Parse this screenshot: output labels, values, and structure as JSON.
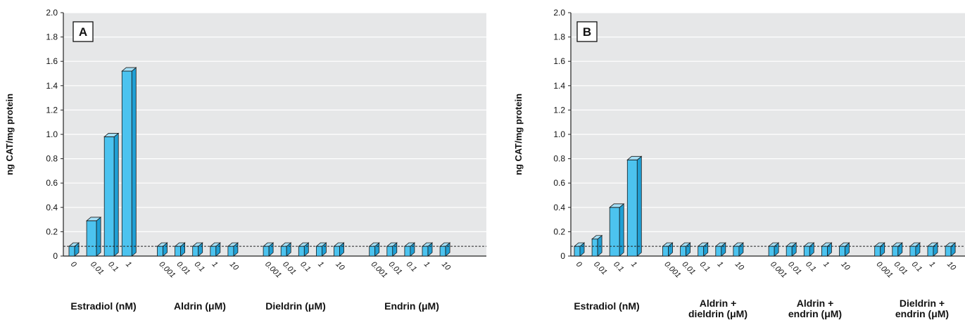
{
  "chart_data": [
    {
      "type": "bar",
      "panel_label": "A",
      "ylabel": "ng CAT/mg protein",
      "ylim": [
        0,
        2.0
      ],
      "yticks": [
        "0",
        "0.2",
        "0.4",
        "0.6",
        "0.8",
        "1.0",
        "1.2",
        "1.4",
        "1.6",
        "1.8",
        "2.0"
      ],
      "baseline": 0.08,
      "grid": true,
      "groups": [
        {
          "label": "Estradiol (nM)",
          "categories": [
            "0",
            "0.01",
            "0.1",
            "1"
          ],
          "values": [
            0.08,
            0.29,
            0.98,
            1.52
          ]
        },
        {
          "label": "Aldrin (μM)",
          "categories": [
            "0.001",
            "0.01",
            "0.1",
            "1",
            "10"
          ],
          "values": [
            0.08,
            0.08,
            0.08,
            0.08,
            0.08
          ]
        },
        {
          "label": "Dieldrin (μM)",
          "categories": [
            "0.001",
            "0.01",
            "0.1",
            "1",
            "10"
          ],
          "values": [
            0.08,
            0.08,
            0.08,
            0.08,
            0.08
          ]
        },
        {
          "label": "Endrin (μM)",
          "categories": [
            "0.001",
            "0.01",
            "0.1",
            "1",
            "10"
          ],
          "values": [
            0.08,
            0.08,
            0.08,
            0.08,
            0.08
          ]
        }
      ]
    },
    {
      "type": "bar",
      "panel_label": "B",
      "ylabel": "ng CAT/mg protein",
      "ylim": [
        0,
        2.0
      ],
      "yticks": [
        "0",
        "0.2",
        "0.4",
        "0.6",
        "0.8",
        "1.0",
        "1.2",
        "1.4",
        "1.6",
        "1.8",
        "2.0"
      ],
      "baseline": 0.08,
      "grid": true,
      "groups": [
        {
          "label": "Estradiol (nM)",
          "categories": [
            "0",
            "0.01",
            "0.1",
            "1"
          ],
          "values": [
            0.08,
            0.14,
            0.4,
            0.79
          ]
        },
        {
          "label": "Aldrin +\ndieldrin (μM)",
          "categories": [
            "0.001",
            "0.01",
            "0.1",
            "1",
            "10"
          ],
          "values": [
            0.08,
            0.08,
            0.08,
            0.08,
            0.08
          ]
        },
        {
          "label": "Aldrin +\nendrin (μM)",
          "categories": [
            "0.001",
            "0.01",
            "0.1",
            "1",
            "10"
          ],
          "values": [
            0.08,
            0.08,
            0.08,
            0.08,
            0.08
          ]
        },
        {
          "label": "Dieldrin +\nendrin (μM)",
          "categories": [
            "0.001",
            "0.01",
            "0.1",
            "1",
            "10"
          ],
          "values": [
            0.08,
            0.08,
            0.08,
            0.08,
            0.08
          ]
        }
      ]
    }
  ],
  "colors": {
    "plot_bg": "#e6e7e8",
    "bar_front": "#4cc3ef",
    "bar_top": "#a6e0f7",
    "bar_side": "#1f9fd4",
    "bar_edge": "#1a1a1a",
    "grid": "#ffffff"
  }
}
